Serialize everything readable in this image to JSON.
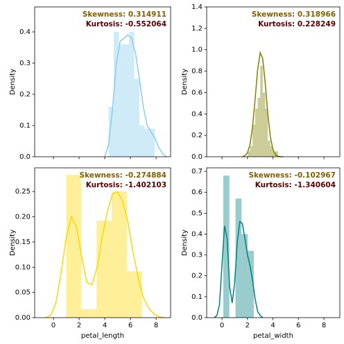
{
  "chart_data": [
    {
      "type": "histogram",
      "color": "#87ceeb",
      "bins": [
        4.3,
        4.7,
        5.1,
        5.5,
        5.9,
        6.3,
        6.7,
        7.1,
        7.5,
        7.9
      ],
      "values": [
        0.16,
        0.4,
        0.36,
        0.36,
        0.4,
        0.25,
        0.1,
        0.09,
        0.09
      ],
      "kde_x": [
        4.0,
        4.3,
        4.6,
        4.9,
        5.2,
        5.5,
        5.8,
        6.1,
        6.4,
        6.7,
        7.0,
        7.3,
        7.6,
        7.9,
        8.2,
        8.5,
        8.8
      ],
      "kde_values": [
        0.0,
        0.04,
        0.15,
        0.3,
        0.37,
        0.38,
        0.39,
        0.38,
        0.33,
        0.25,
        0.16,
        0.1,
        0.08,
        0.06,
        0.03,
        0.01,
        0.0
      ],
      "xlim": [
        -1.46,
        9.13
      ],
      "xticks": [
        0,
        2,
        4,
        6,
        8
      ],
      "show_xtick_labels": false,
      "ylim": [
        0,
        0.48
      ],
      "yticks": [
        {
          "value": 0,
          "label": "0.0"
        },
        0.1,
        0.2,
        0.3,
        0.4
      ],
      "ylabel": "Density",
      "annotations": [
        {
          "text": "Skewness: 0.314911",
          "color": "#7f6000"
        },
        {
          "text": "Kurtosis: -0.552064",
          "color": "#5a0000"
        }
      ]
    },
    {
      "type": "histogram",
      "color": "#808000",
      "bins": [
        2.0,
        2.2,
        2.4,
        2.6,
        2.8,
        3.0,
        3.2,
        3.4,
        3.6,
        3.8,
        4.0,
        4.2,
        4.4
      ],
      "values": [
        0.05,
        0.1,
        0.3,
        0.45,
        0.55,
        0.85,
        0.6,
        0.45,
        0.15,
        0.1,
        0.05,
        0.05
      ],
      "kde_x": [
        1.6,
        1.8,
        2.0,
        2.2,
        2.4,
        2.6,
        2.8,
        3.0,
        3.2,
        3.4,
        3.6,
        3.8,
        4.0,
        4.2,
        4.4,
        4.6,
        4.8
      ],
      "kde_values": [
        0.002,
        0.009,
        0.037,
        0.114,
        0.279,
        0.537,
        0.814,
        0.973,
        0.916,
        0.68,
        0.398,
        0.184,
        0.067,
        0.019,
        0.004,
        0.001,
        0.0
      ],
      "xlim": [
        -1.2,
        9.25
      ],
      "xticks": [
        0,
        2,
        4,
        6,
        8
      ],
      "show_xtick_labels": false,
      "ylim": [
        0,
        1.4
      ],
      "yticks": [
        {
          "value": 0,
          "label": "0.0"
        },
        0.2,
        0.4,
        0.6,
        0.8,
        {
          "value": 1,
          "label": "1.0"
        },
        1.2,
        1.4
      ],
      "ylabel": "Density",
      "annotations": [
        {
          "text": "Skewness: 0.318966",
          "color": "#7f6000"
        },
        {
          "text": "Kurtosis: 0.228249",
          "color": "#5a0000"
        }
      ]
    },
    {
      "type": "histogram",
      "color": "#ffd700",
      "bins": [
        1.0,
        2.18,
        3.36,
        4.54,
        5.72,
        6.9
      ],
      "values": [
        0.283,
        0.017,
        0.192,
        0.25,
        0.092
      ],
      "kde_x": [
        -0.6,
        -0.2,
        0.2,
        0.6,
        1.0,
        1.4,
        1.8,
        2.2,
        2.6,
        3.0,
        3.4,
        3.8,
        4.2,
        4.6,
        5.0,
        5.4,
        5.8,
        6.2,
        6.6,
        7.0,
        7.4,
        7.8,
        8.2,
        8.6
      ],
      "kde_values": [
        0.0,
        0.005,
        0.03,
        0.09,
        0.16,
        0.2,
        0.18,
        0.12,
        0.07,
        0.065,
        0.1,
        0.16,
        0.21,
        0.245,
        0.25,
        0.23,
        0.19,
        0.13,
        0.08,
        0.04,
        0.02,
        0.008,
        0.002,
        0.0
      ],
      "xlim": [
        -1.46,
        9.13
      ],
      "xticks": [
        0,
        2,
        4,
        6,
        8
      ],
      "show_xtick_labels": true,
      "ylim": [
        0,
        0.297
      ],
      "yticks": [
        {
          "value": 0,
          "label": "0.00"
        },
        0.05,
        {
          "value": 0.1,
          "label": "0.10"
        },
        0.15,
        {
          "value": 0.2,
          "label": "0.20"
        },
        0.25
      ],
      "xlabel": "petal_length",
      "ylabel": "Density",
      "annotations": [
        {
          "text": "Skewness: -0.274884",
          "color": "#7f6000"
        },
        {
          "text": "Kurtosis: -1.402103",
          "color": "#5a0000"
        }
      ]
    },
    {
      "type": "histogram",
      "color": "#008080",
      "bins": [
        0.1,
        0.58,
        1.06,
        1.54,
        2.02,
        2.5
      ],
      "values": [
        0.68,
        0.0,
        0.57,
        0.4,
        0.32
      ],
      "kde_x": [
        -0.6,
        -0.4,
        -0.2,
        0.0,
        0.2,
        0.4,
        0.6,
        0.8,
        1.0,
        1.2,
        1.4,
        1.6,
        1.8,
        2.0,
        2.2,
        2.4,
        2.6,
        2.8,
        3.0,
        3.2
      ],
      "kde_values": [
        0.0,
        0.01,
        0.06,
        0.25,
        0.44,
        0.38,
        0.15,
        0.07,
        0.17,
        0.36,
        0.46,
        0.45,
        0.38,
        0.3,
        0.25,
        0.18,
        0.09,
        0.03,
        0.01,
        0.0
      ],
      "xlim": [
        -1.2,
        9.25
      ],
      "xticks": [
        0,
        2,
        4,
        6,
        8
      ],
      "show_xtick_labels": true,
      "ylim": [
        0,
        0.717
      ],
      "yticks": [
        {
          "value": 0,
          "label": "0.0"
        },
        0.1,
        0.2,
        0.3,
        0.4,
        0.5,
        0.6,
        0.7
      ],
      "xlabel": "petal_width",
      "ylabel": "Density",
      "annotations": [
        {
          "text": "Skewness: -0.102967",
          "color": "#7f6000"
        },
        {
          "text": "Kurtosis: -1.340604",
          "color": "#5a0000"
        }
      ]
    }
  ]
}
